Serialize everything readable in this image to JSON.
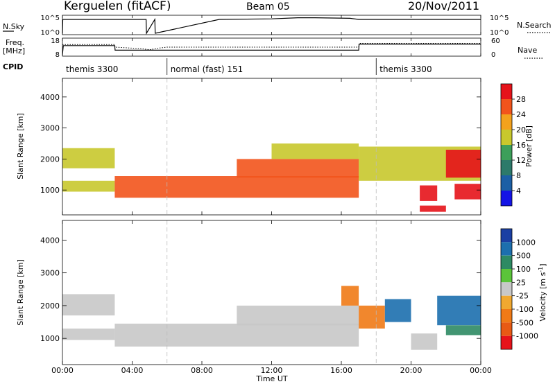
{
  "header": {
    "station": "Kerguelen (fitACF)",
    "beam": "Beam 05",
    "date": "20/Nov/2011"
  },
  "top_panels": {
    "nsky_label": "N.Sky",
    "nsearch_label": "N.Search",
    "freq_label_1": "Freq.",
    "freq_label_2": "[MHz]",
    "nave_label": "Nave",
    "cpid_label": "CPID",
    "nsky_ticks": [
      "10^5",
      "10^0"
    ],
    "nsearch_ticks": [
      "10^5",
      "10^0"
    ],
    "freq_ticks": [
      "18",
      "8"
    ],
    "nave_ticks": [
      "60",
      "0"
    ]
  },
  "cpid": [
    {
      "name": "themis 3300",
      "start_h": 0,
      "end_h": 6
    },
    {
      "name": "normal (fast) 151",
      "start_h": 6,
      "end_h": 18
    },
    {
      "name": "themis 3300",
      "start_h": 18,
      "end_h": 24
    }
  ],
  "chart_data": [
    {
      "type": "line",
      "panel": "N.Sky / N.Search",
      "ylabel": "N.Sky",
      "y2label": "N.Search",
      "x": [
        0,
        0.02,
        4.8,
        4.82,
        5.3,
        5.32,
        9,
        12,
        13.5,
        14.5,
        15.5,
        16.5,
        17,
        24
      ],
      "series": [
        {
          "name": "N.Sky",
          "values": [
            0,
            5,
            5,
            0,
            5,
            0,
            5,
            5.2,
            5.6,
            5.6,
            5.5,
            5.4,
            5.0,
            5.0
          ]
        }
      ]
    },
    {
      "type": "line",
      "panel": "Freq. / Nave",
      "ylabel": "Freq. [MHz]",
      "y2label": "Nave",
      "series": [
        {
          "name": "Freq.",
          "x": [
            0,
            0.05,
            3,
            3.02,
            17,
            17.02,
            24
          ],
          "values": [
            8,
            14,
            14,
            11,
            11,
            15,
            15
          ]
        },
        {
          "name": "Nave",
          "x": [
            0,
            3,
            3.02,
            4.5,
            5,
            5.5,
            6,
            17,
            17.02,
            24
          ],
          "values": [
            40,
            40,
            30,
            24,
            20,
            26,
            30,
            30,
            45,
            45
          ]
        }
      ]
    },
    {
      "type": "heatmap",
      "panel": "Power",
      "ylabel": "Slant Range [km]",
      "colorbar_label": "Power [dB]",
      "colorbar_ticks": [
        "28",
        "24",
        "20",
        "16",
        "12",
        "8",
        "4"
      ],
      "xlim": [
        0,
        24
      ],
      "ylim": [
        200,
        4600
      ],
      "y_ticks": [
        "1000",
        "2000",
        "3000",
        "4000"
      ],
      "regions": [
        {
          "t0": 0.0,
          "t1": 3.0,
          "r0": 1700,
          "r1": 2350,
          "value": 16
        },
        {
          "t0": 0.0,
          "t1": 3.0,
          "r0": 950,
          "r1": 1300,
          "value": 14
        },
        {
          "t0": 3.0,
          "t1": 17.0,
          "r0": 750,
          "r1": 1450,
          "value": 24
        },
        {
          "t0": 10.0,
          "t1": 17.0,
          "r0": 1400,
          "r1": 2000,
          "value": 22
        },
        {
          "t0": 12.0,
          "t1": 17.0,
          "r0": 2000,
          "r1": 2500,
          "value": 14
        },
        {
          "t0": 17.0,
          "t1": 24.0,
          "r0": 1300,
          "r1": 2400,
          "value": 14
        },
        {
          "t0": 20.5,
          "t1": 21.5,
          "r0": 650,
          "r1": 1150,
          "value": 28
        },
        {
          "t0": 22.0,
          "t1": 24.0,
          "r0": 1400,
          "r1": 2300,
          "value": 26
        },
        {
          "t0": 22.5,
          "t1": 24.0,
          "r0": 700,
          "r1": 1200,
          "value": 28
        },
        {
          "t0": 20.5,
          "t1": 22.0,
          "r0": 300,
          "r1": 500,
          "value": 26
        }
      ]
    },
    {
      "type": "heatmap",
      "panel": "Velocity",
      "ylabel": "Slant Range [km]",
      "colorbar_label": "Velocity [m s^-1]",
      "colorbar_ticks": [
        "1000",
        "500",
        "100",
        "25",
        "-25",
        "-100",
        "-500",
        "-1000"
      ],
      "xlim": [
        0,
        24
      ],
      "ylim": [
        200,
        4600
      ],
      "y_ticks": [
        "1000",
        "2000",
        "3000",
        "4000"
      ],
      "regions": [
        {
          "t0": 0.0,
          "t1": 3.0,
          "r0": 1700,
          "r1": 2350,
          "value": 0
        },
        {
          "t0": 0.0,
          "t1": 3.0,
          "r0": 950,
          "r1": 1300,
          "value": 0
        },
        {
          "t0": 3.0,
          "t1": 17.0,
          "r0": 750,
          "r1": 1450,
          "value": 0
        },
        {
          "t0": 10.0,
          "t1": 17.0,
          "r0": 1400,
          "r1": 2000,
          "value": 0
        },
        {
          "t0": 16.0,
          "t1": 17.0,
          "r0": 2000,
          "r1": 2600,
          "value": -150
        },
        {
          "t0": 17.0,
          "t1": 18.5,
          "r0": 1300,
          "r1": 2000,
          "value": -300
        },
        {
          "t0": 18.5,
          "t1": 20.0,
          "r0": 1500,
          "r1": 2200,
          "value": 300
        },
        {
          "t0": 20.0,
          "t1": 21.5,
          "r0": 650,
          "r1": 1150,
          "value": 0
        },
        {
          "t0": 21.5,
          "t1": 24.0,
          "r0": 1400,
          "r1": 2300,
          "value": 300
        },
        {
          "t0": 22.0,
          "t1": 24.0,
          "r0": 1100,
          "r1": 1400,
          "value": 60
        }
      ]
    }
  ],
  "x_axis": {
    "ticks": [
      "00:00",
      "04:00",
      "08:00",
      "12:00",
      "16:00",
      "20:00",
      "00:00"
    ],
    "label": "Time UT"
  }
}
